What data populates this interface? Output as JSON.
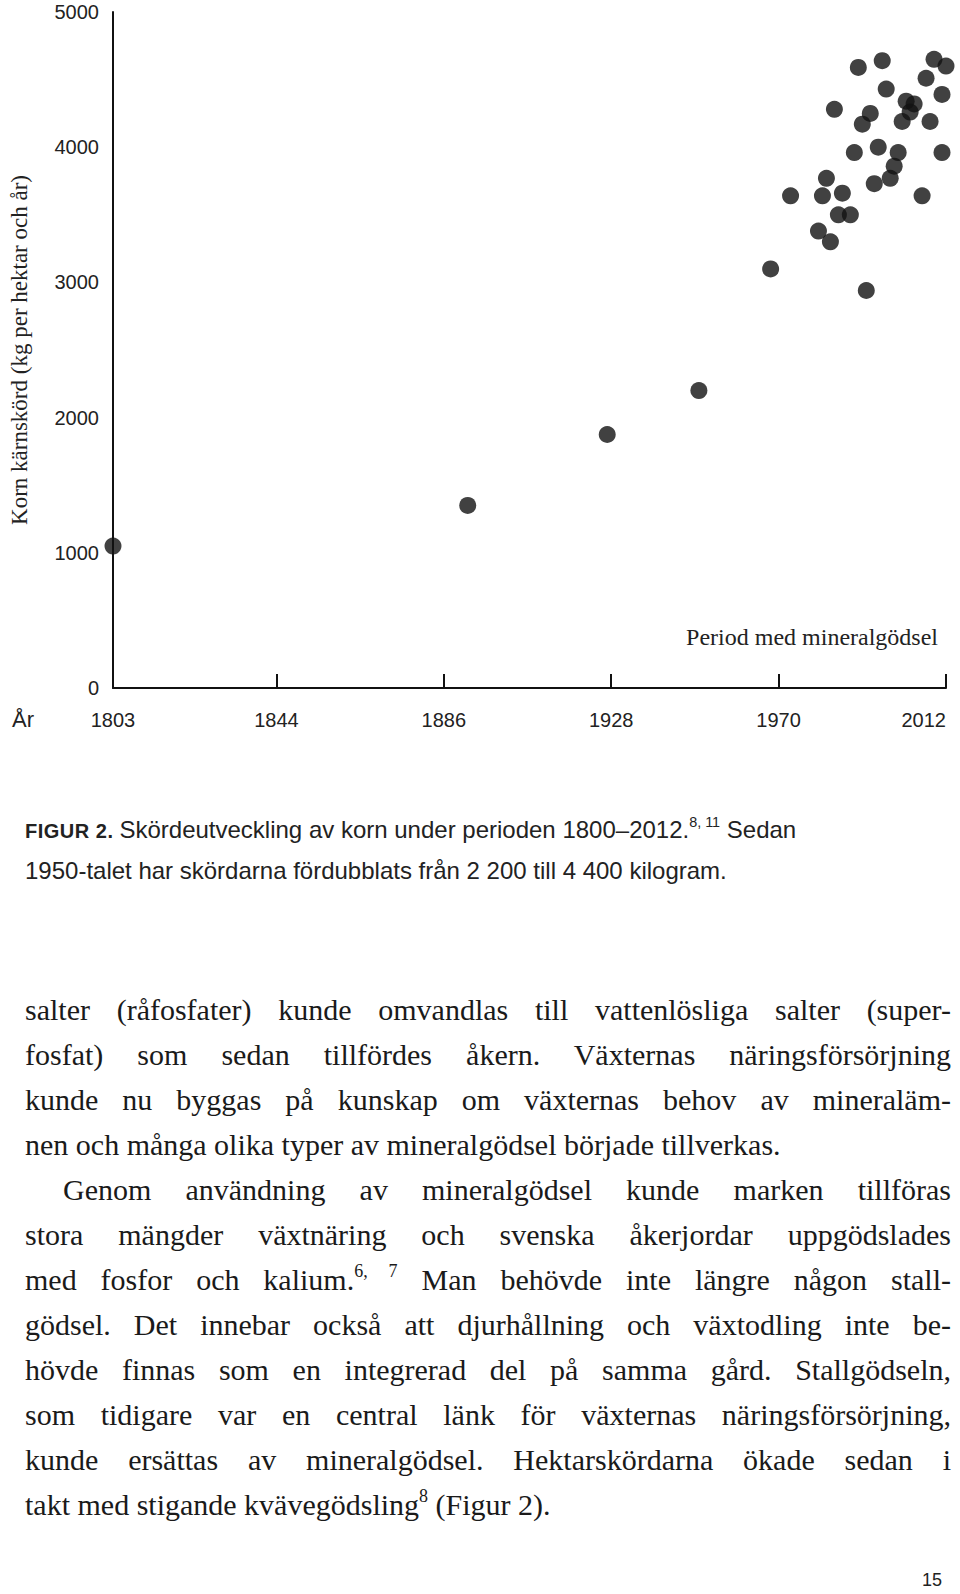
{
  "chart_data": {
    "type": "scatter",
    "x_label": "År",
    "y_label": "Korn kärnskörd (kg per hektar och år)",
    "annotation": "Period med mineralgödsel",
    "x": [
      1803,
      1892,
      1927,
      1950,
      1968,
      1973,
      1981,
      1982,
      1984,
      1980,
      1983,
      1986,
      1985,
      1988,
      1990,
      1992,
      1993,
      1991,
      1989,
      1995,
      1994,
      1996,
      1997,
      1998,
      1999,
      2000,
      2001,
      2002,
      2003,
      2004,
      2006,
      2007,
      2008,
      2009,
      2011,
      2011,
      2012
    ],
    "values": [
      1050,
      1350,
      1875,
      2200,
      3100,
      3640,
      3640,
      3770,
      4280,
      3380,
      3300,
      3660,
      3500,
      3500,
      4590,
      2940,
      4250,
      4170,
      3960,
      4000,
      3730,
      4640,
      4430,
      3770,
      3860,
      3960,
      4190,
      4340,
      4260,
      4320,
      3640,
      4510,
      4190,
      4650,
      3960,
      4390,
      4600
    ],
    "xlim": [
      1803,
      2012
    ],
    "xticks": [
      1803,
      1844,
      1886,
      1928,
      1970,
      2012
    ],
    "ylim": [
      0,
      5000
    ],
    "yticks": [
      0,
      1000,
      2000,
      3000,
      4000,
      5000
    ],
    "color": "#111111",
    "marker": "circle",
    "grid": false
  },
  "caption": {
    "label": "FIGUR 2.",
    "lines": [
      [
        "Skördeutveckling av korn under perioden 1800–2012.",
        {
          "sup": "8, 11"
        },
        " Sedan"
      ],
      [
        "1950-talet har skördarna fördubblats från 2 200 till 4 400 kilogram."
      ]
    ]
  },
  "body": {
    "paragraphs": [
      {
        "lines": [
          [
            "salter (råfosfater) kunde omvandlas till vattenlösliga salter (super-"
          ],
          [
            "fosfat) som sedan tillfördes åkern. Växternas näringsförsörjning"
          ],
          [
            "kunde nu byggas på kunskap om växternas behov av mineraläm-"
          ],
          [
            "nen och många olika typer av mineralgödsel började tillverkas."
          ]
        ]
      },
      {
        "lines": [
          [
            "Genom användning av mineralgödsel kunde marken tillföras"
          ],
          [
            "stora mängder växtnäring och svenska åkerjordar uppgödslades"
          ],
          [
            "med fosfor och kalium.",
            {
              "sup": "6, 7"
            },
            " Man behövde inte längre någon stall-"
          ],
          [
            "gödsel. Det innebar också att djurhållning och växtodling inte be-"
          ],
          [
            "hövde finnas som en integrerad del på samma gård. Stallgödseln,"
          ],
          [
            "som tidigare var en central länk för växternas näringsförsörjning,"
          ],
          [
            "kunde ersättas av mineralgödsel. Hektarskördarna ökade sedan i"
          ],
          [
            "takt med stigande kvävegödsling",
            {
              "sup": "8"
            },
            " (Figur 2)."
          ]
        ]
      }
    ]
  },
  "page_number": 15
}
